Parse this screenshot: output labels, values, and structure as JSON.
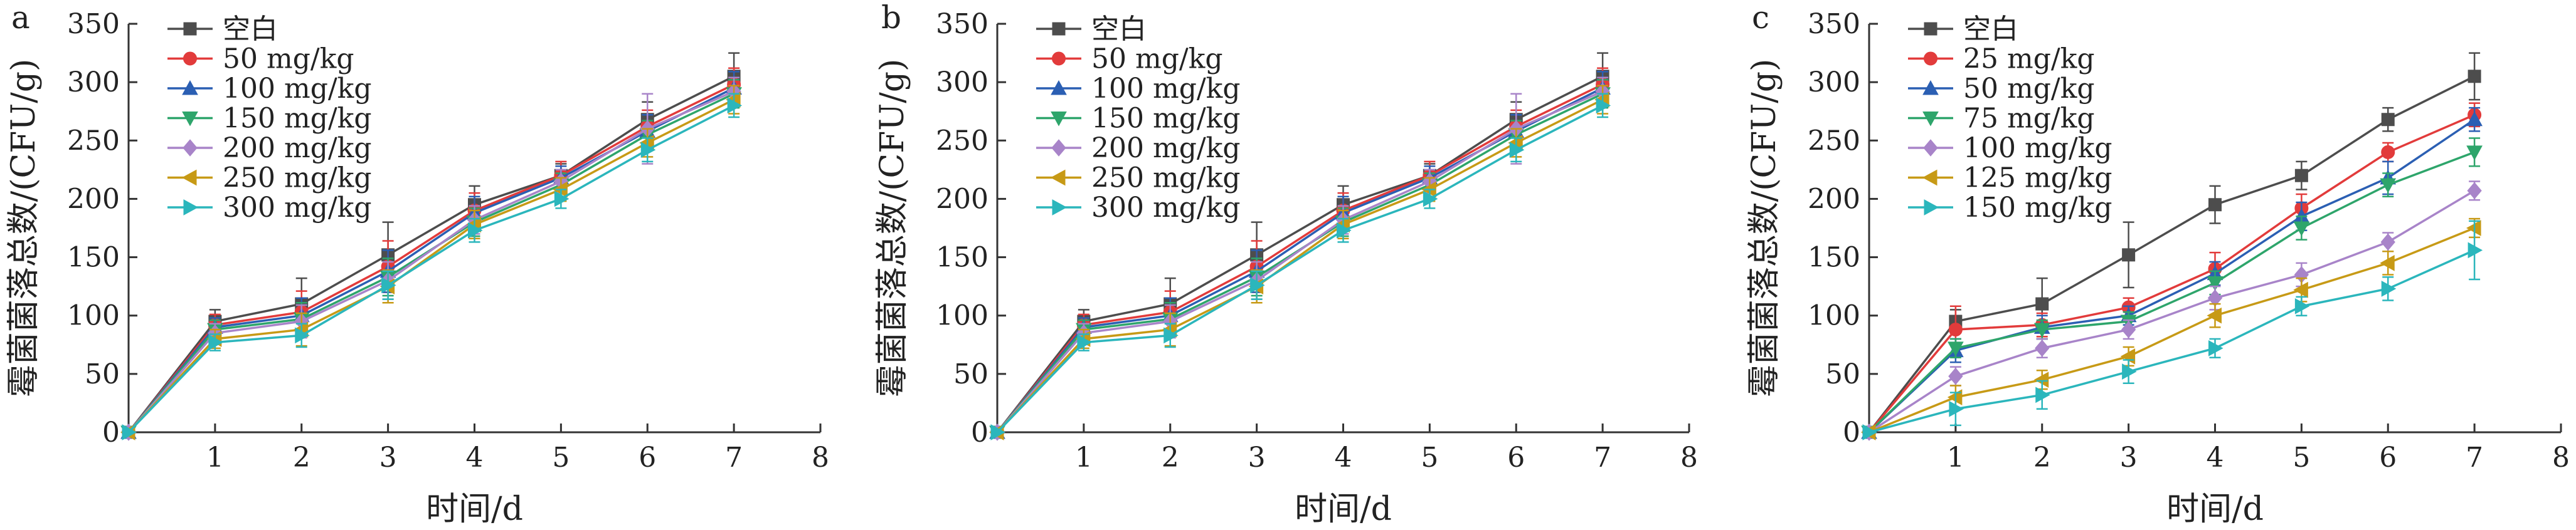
{
  "chart_data": [
    {
      "type": "line",
      "panel_label": "a",
      "xlabel": "时间/d",
      "ylabel": "霉菌菌落总数/(CFU/g)",
      "xlim": [
        0,
        8
      ],
      "ylim": [
        0,
        350
      ],
      "xticks": [
        1,
        2,
        3,
        4,
        5,
        6,
        7,
        8
      ],
      "yticks": [
        0,
        50,
        100,
        150,
        200,
        250,
        300,
        350
      ],
      "legend_position": "top-left",
      "grid": false,
      "x": [
        0,
        1,
        2,
        3,
        4,
        5,
        6,
        7
      ],
      "series": [
        {
          "name": "空白",
          "color": "#4d4d4d",
          "marker": "square",
          "values": [
            0,
            95,
            110,
            152,
            195,
            220,
            268,
            305
          ],
          "errors": [
            0,
            10,
            22,
            28,
            16,
            10,
            15,
            20
          ]
        },
        {
          "name": "50 mg/kg",
          "color": "#e23b3b",
          "marker": "circle",
          "values": [
            0,
            92,
            103,
            142,
            190,
            220,
            262,
            298
          ],
          "errors": [
            0,
            9,
            18,
            22,
            15,
            12,
            14,
            14
          ]
        },
        {
          "name": "100 mg/kg",
          "color": "#2b5fb3",
          "marker": "triangle-up",
          "values": [
            0,
            90,
            100,
            138,
            188,
            218,
            258,
            295
          ],
          "errors": [
            0,
            8,
            15,
            18,
            14,
            10,
            14,
            14
          ]
        },
        {
          "name": "150 mg/kg",
          "color": "#2ea56b",
          "marker": "triangle-down",
          "values": [
            0,
            88,
            97,
            133,
            180,
            212,
            255,
            290
          ],
          "errors": [
            0,
            8,
            14,
            16,
            12,
            10,
            12,
            12
          ]
        },
        {
          "name": "200 mg/kg",
          "color": "#a884c9",
          "marker": "diamond",
          "values": [
            0,
            85,
            95,
            130,
            182,
            215,
            260,
            292
          ],
          "errors": [
            0,
            8,
            14,
            16,
            12,
            10,
            30,
            12
          ]
        },
        {
          "name": "250 mg/kg",
          "color": "#c79a16",
          "marker": "triangle-left",
          "values": [
            0,
            80,
            88,
            125,
            178,
            208,
            248,
            285
          ],
          "errors": [
            0,
            8,
            14,
            14,
            12,
            10,
            12,
            12
          ]
        },
        {
          "name": "300 mg/kg",
          "color": "#2bb6bc",
          "marker": "triangle-right",
          "values": [
            0,
            77,
            83,
            126,
            173,
            200,
            242,
            280
          ],
          "errors": [
            0,
            7,
            10,
            12,
            10,
            8,
            10,
            10
          ]
        }
      ]
    },
    {
      "type": "line",
      "panel_label": "b",
      "xlabel": "时间/d",
      "ylabel": "霉菌菌落总数/(CFU/g)",
      "xlim": [
        0,
        8
      ],
      "ylim": [
        0,
        350
      ],
      "xticks": [
        1,
        2,
        3,
        4,
        5,
        6,
        7,
        8
      ],
      "yticks": [
        0,
        50,
        100,
        150,
        200,
        250,
        300,
        350
      ],
      "legend_position": "top-left",
      "grid": false,
      "x": [
        0,
        1,
        2,
        3,
        4,
        5,
        6,
        7
      ],
      "series": [
        {
          "name": "空白",
          "color": "#4d4d4d",
          "marker": "square",
          "values": [
            0,
            95,
            110,
            152,
            195,
            220,
            268,
            305
          ],
          "errors": [
            0,
            10,
            22,
            28,
            16,
            10,
            15,
            20
          ]
        },
        {
          "name": "50 mg/kg",
          "color": "#e23b3b",
          "marker": "circle",
          "values": [
            0,
            92,
            103,
            142,
            190,
            220,
            262,
            298
          ],
          "errors": [
            0,
            9,
            18,
            22,
            15,
            12,
            14,
            14
          ]
        },
        {
          "name": "100 mg/kg",
          "color": "#2b5fb3",
          "marker": "triangle-up",
          "values": [
            0,
            90,
            100,
            138,
            188,
            218,
            258,
            295
          ],
          "errors": [
            0,
            8,
            15,
            18,
            14,
            10,
            14,
            14
          ]
        },
        {
          "name": "150 mg/kg",
          "color": "#2ea56b",
          "marker": "triangle-down",
          "values": [
            0,
            88,
            97,
            133,
            180,
            212,
            255,
            290
          ],
          "errors": [
            0,
            8,
            14,
            16,
            12,
            10,
            12,
            12
          ]
        },
        {
          "name": "200 mg/kg",
          "color": "#a884c9",
          "marker": "diamond",
          "values": [
            0,
            85,
            95,
            130,
            182,
            215,
            260,
            292
          ],
          "errors": [
            0,
            8,
            14,
            16,
            12,
            10,
            30,
            12
          ]
        },
        {
          "name": "250 mg/kg",
          "color": "#c79a16",
          "marker": "triangle-left",
          "values": [
            0,
            80,
            88,
            125,
            178,
            208,
            248,
            285
          ],
          "errors": [
            0,
            8,
            14,
            14,
            12,
            10,
            12,
            12
          ]
        },
        {
          "name": "300 mg/kg",
          "color": "#2bb6bc",
          "marker": "triangle-right",
          "values": [
            0,
            77,
            83,
            126,
            173,
            200,
            242,
            280
          ],
          "errors": [
            0,
            7,
            10,
            12,
            10,
            8,
            10,
            10
          ]
        }
      ]
    },
    {
      "type": "line",
      "panel_label": "c",
      "xlabel": "时间/d",
      "ylabel": "霉菌菌落总数/(CFU/g)",
      "xlim": [
        0,
        8
      ],
      "ylim": [
        0,
        350
      ],
      "xticks": [
        1,
        2,
        3,
        4,
        5,
        6,
        7,
        8
      ],
      "yticks": [
        0,
        50,
        100,
        150,
        200,
        250,
        300,
        350
      ],
      "legend_position": "top-left",
      "grid": false,
      "x": [
        0,
        1,
        2,
        3,
        4,
        5,
        6,
        7
      ],
      "series": [
        {
          "name": "空白",
          "color": "#4d4d4d",
          "marker": "square",
          "values": [
            0,
            95,
            110,
            152,
            195,
            220,
            268,
            305
          ],
          "errors": [
            0,
            10,
            22,
            28,
            16,
            12,
            10,
            20
          ]
        },
        {
          "name": "25 mg/kg",
          "color": "#e23b3b",
          "marker": "circle",
          "values": [
            0,
            88,
            92,
            107,
            140,
            192,
            240,
            272
          ],
          "errors": [
            0,
            20,
            10,
            8,
            14,
            12,
            8,
            10
          ]
        },
        {
          "name": "50 mg/kg",
          "color": "#2b5fb3",
          "marker": "triangle-up",
          "values": [
            0,
            70,
            90,
            100,
            136,
            185,
            218,
            268
          ],
          "errors": [
            0,
            10,
            10,
            8,
            10,
            12,
            14,
            10
          ]
        },
        {
          "name": "75 mg/kg",
          "color": "#2ea56b",
          "marker": "triangle-down",
          "values": [
            0,
            72,
            88,
            95,
            128,
            175,
            212,
            240
          ],
          "errors": [
            0,
            8,
            8,
            8,
            10,
            10,
            10,
            12
          ]
        },
        {
          "name": "100 mg/kg",
          "color": "#a884c9",
          "marker": "diamond",
          "values": [
            0,
            48,
            72,
            88,
            115,
            135,
            163,
            207
          ],
          "errors": [
            0,
            8,
            8,
            8,
            10,
            10,
            8,
            8
          ]
        },
        {
          "name": "125 mg/kg",
          "color": "#c79a16",
          "marker": "triangle-left",
          "values": [
            0,
            30,
            45,
            65,
            100,
            122,
            145,
            175
          ],
          "errors": [
            0,
            10,
            8,
            8,
            10,
            10,
            10,
            8
          ]
        },
        {
          "name": "150 mg/kg",
          "color": "#2bb6bc",
          "marker": "triangle-right",
          "values": [
            0,
            20,
            32,
            52,
            72,
            108,
            123,
            156
          ],
          "errors": [
            0,
            14,
            12,
            10,
            8,
            8,
            10,
            25
          ]
        }
      ]
    }
  ]
}
